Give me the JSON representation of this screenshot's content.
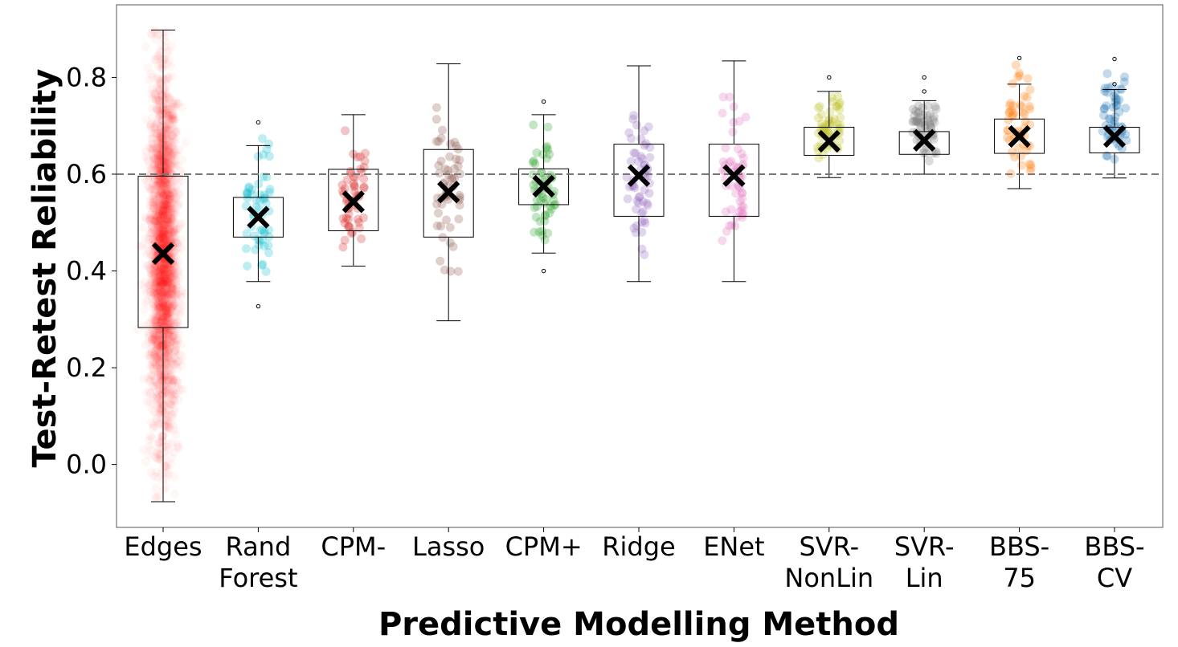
{
  "chart_data": {
    "type": "boxplot",
    "xlabel": "Predictive Modelling Method",
    "ylabel": "Test-Retest Reliability",
    "ylim": [
      -0.13,
      0.95
    ],
    "yticks": [
      0.0,
      0.2,
      0.4,
      0.6,
      0.8
    ],
    "ytick_labels": [
      "0.0",
      "0.2",
      "0.4",
      "0.6",
      "0.8"
    ],
    "reference_line": {
      "y": 0.6,
      "style": "dashed",
      "color": "#777777"
    },
    "grid": false,
    "legend": "none",
    "categories": [
      {
        "label": [
          "Edges"
        ],
        "color": "#ff0000",
        "whisker_low": -0.077,
        "q1": 0.283,
        "median": 0.596,
        "q3": 0.596,
        "whisker_high": 0.898,
        "mean": 0.436,
        "outliers": [],
        "spread_low": -0.077,
        "spread_high": 0.898,
        "dense": true
      },
      {
        "label": [
          "Rand",
          "Forest"
        ],
        "color": "#17becf",
        "whisker_low": 0.378,
        "q1": 0.47,
        "median": 0.552,
        "q3": 0.552,
        "whisker_high": 0.659,
        "mean": 0.511,
        "outliers": [
          0.707,
          0.327
        ],
        "spread_low": 0.327,
        "spread_high": 0.707
      },
      {
        "label": [
          "CPM-"
        ],
        "color": "#d62728",
        "whisker_low": 0.41,
        "q1": 0.483,
        "median": 0.61,
        "q3": 0.61,
        "whisker_high": 0.723,
        "mean": 0.543,
        "outliers": [],
        "spread_low": 0.41,
        "spread_high": 0.723
      },
      {
        "label": [
          "Lasso"
        ],
        "color": "#8c564b",
        "whisker_low": 0.297,
        "q1": 0.47,
        "median": 0.651,
        "q3": 0.651,
        "whisker_high": 0.828,
        "mean": 0.563,
        "outliers": [],
        "spread_low": 0.297,
        "spread_high": 0.828
      },
      {
        "label": [
          "CPM+"
        ],
        "color": "#2ca02c",
        "whisker_low": 0.437,
        "q1": 0.537,
        "median": 0.611,
        "q3": 0.611,
        "whisker_high": 0.723,
        "mean": 0.575,
        "outliers": [
          0.75,
          0.4
        ],
        "spread_low": 0.4,
        "spread_high": 0.75
      },
      {
        "label": [
          "Ridge"
        ],
        "color": "#9467bd",
        "whisker_low": 0.378,
        "q1": 0.513,
        "median": 0.662,
        "q3": 0.662,
        "whisker_high": 0.824,
        "mean": 0.597,
        "outliers": [],
        "spread_low": 0.378,
        "spread_high": 0.824
      },
      {
        "label": [
          "ENet"
        ],
        "color": "#e377c2",
        "whisker_low": 0.378,
        "q1": 0.513,
        "median": 0.662,
        "q3": 0.662,
        "whisker_high": 0.834,
        "mean": 0.597,
        "outliers": [],
        "spread_low": 0.378,
        "spread_high": 0.834
      },
      {
        "label": [
          "SVR-",
          "NonLin"
        ],
        "color": "#bcbd22",
        "whisker_low": 0.593,
        "q1": 0.639,
        "median": 0.697,
        "q3": 0.697,
        "whisker_high": 0.771,
        "mean": 0.668,
        "outliers": [
          0.8
        ],
        "spread_low": 0.593,
        "spread_high": 0.8
      },
      {
        "label": [
          "SVR-",
          "Lin"
        ],
        "color": "#7f7f7f",
        "whisker_low": 0.6,
        "q1": 0.641,
        "median": 0.688,
        "q3": 0.688,
        "whisker_high": 0.752,
        "mean": 0.67,
        "outliers": [
          0.8,
          0.771
        ],
        "spread_low": 0.6,
        "spread_high": 0.8
      },
      {
        "label": [
          "BBS-",
          "75"
        ],
        "color": "#ff7f0e",
        "whisker_low": 0.57,
        "q1": 0.643,
        "median": 0.714,
        "q3": 0.714,
        "whisker_high": 0.786,
        "mean": 0.678,
        "outliers": [
          0.84
        ],
        "spread_low": 0.57,
        "spread_high": 0.84
      },
      {
        "label": [
          "BBS-",
          "CV"
        ],
        "color": "#1f77b4",
        "whisker_low": 0.592,
        "q1": 0.644,
        "median": 0.697,
        "q3": 0.697,
        "whisker_high": 0.775,
        "mean": 0.678,
        "outliers": [
          0.838,
          0.786
        ],
        "spread_low": 0.592,
        "spread_high": 0.838
      }
    ]
  }
}
